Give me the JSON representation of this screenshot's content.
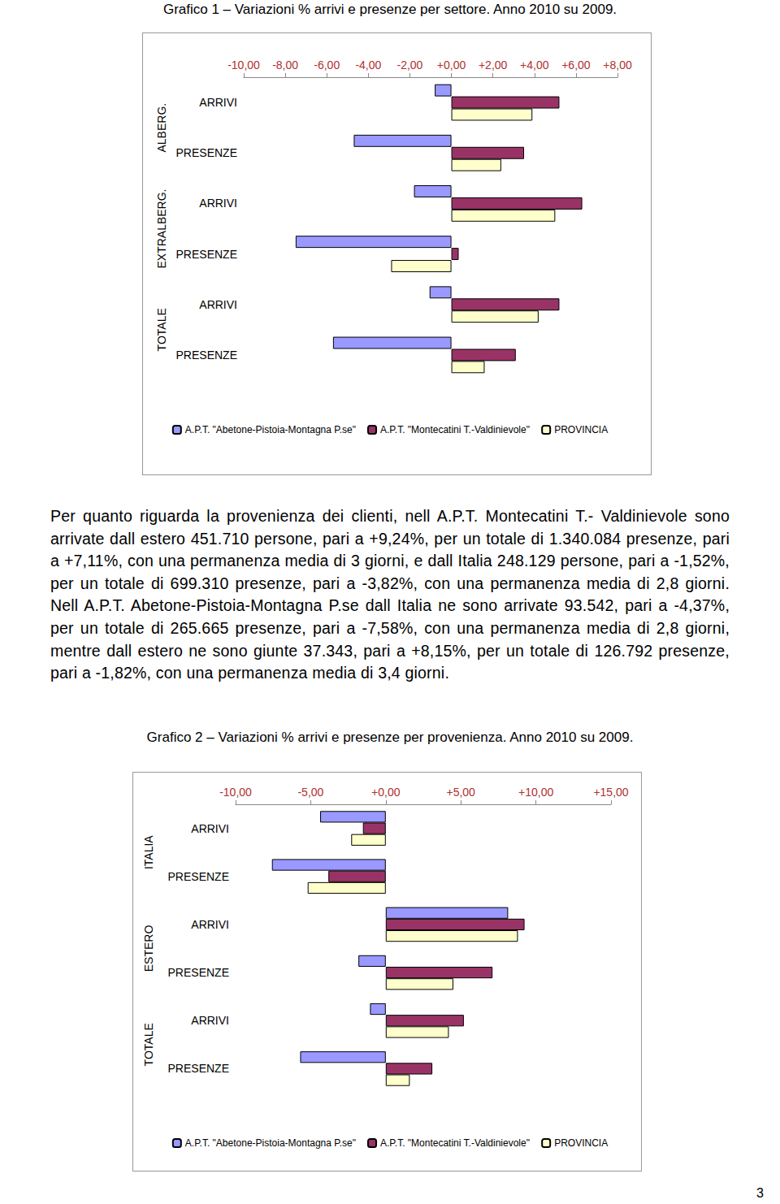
{
  "chart_data": [
    {
      "type": "bar",
      "orientation": "horizontal",
      "title": "Grafico 1 – Variazioni % arrivi e presenze per settore. Anno 2010 su 2009.",
      "groups": [
        "ALBERG.",
        "EXTRALBERG.",
        "TOTALE"
      ],
      "categories": [
        "ARRIVI",
        "PRESENZE",
        "ARRIVI",
        "PRESENZE",
        "ARRIVI",
        "PRESENZE"
      ],
      "series": [
        {
          "name": "A.P.T. \"Abetone-Pistoia-Montagna P.se\"",
          "color": "#9999ff",
          "values": [
            -0.8,
            -4.7,
            -1.8,
            -7.5,
            -1.05,
            -5.7
          ]
        },
        {
          "name": "A.P.T. \"Montecatini T.-Valdinievole\"",
          "color": "#993366",
          "values": [
            5.2,
            3.5,
            6.3,
            0.35,
            5.2,
            3.1
          ]
        },
        {
          "name": "PROVINCIA",
          "color": "#ffffcc",
          "values": [
            3.9,
            2.4,
            5.0,
            -2.9,
            4.2,
            1.6
          ]
        }
      ],
      "xlim": [
        -10,
        8
      ],
      "xticks": [
        {
          "value": -10,
          "label": "-10,00"
        },
        {
          "value": -8,
          "label": "-8,00"
        },
        {
          "value": -6,
          "label": "-6,00"
        },
        {
          "value": -4,
          "label": "-4,00"
        },
        {
          "value": -2,
          "label": "-2,00"
        },
        {
          "value": 0,
          "label": "+0,00"
        },
        {
          "value": 2,
          "label": "+2,00"
        },
        {
          "value": 4,
          "label": "+4,00"
        },
        {
          "value": 6,
          "label": "+6,00"
        },
        {
          "value": 8,
          "label": "+8,00"
        }
      ],
      "grid": false,
      "legend": "bottom"
    },
    {
      "type": "bar",
      "orientation": "horizontal",
      "title": "Grafico 2 – Variazioni % arrivi e presenze per provenienza. Anno 2010 su 2009.",
      "groups": [
        "ITALIA",
        "ESTERO",
        "TOTALE"
      ],
      "categories": [
        "ARRIVI",
        "PRESENZE",
        "ARRIVI",
        "PRESENZE",
        "ARRIVI",
        "PRESENZE"
      ],
      "series": [
        {
          "name": "A.P.T. \"Abetone-Pistoia-Montagna P.se\"",
          "color": "#9999ff",
          "values": [
            -4.37,
            -7.58,
            8.15,
            -1.82,
            -1.05,
            -5.7
          ]
        },
        {
          "name": "A.P.T. \"Montecatini T.-Valdinievole\"",
          "color": "#993366",
          "values": [
            -1.52,
            -3.82,
            9.24,
            7.11,
            5.2,
            3.1
          ]
        },
        {
          "name": "PROVINCIA",
          "color": "#ffffcc",
          "values": [
            -2.3,
            -5.2,
            8.8,
            4.5,
            4.2,
            1.6
          ]
        }
      ],
      "xlim": [
        -10,
        15
      ],
      "xticks": [
        {
          "value": -10,
          "label": "-10,00"
        },
        {
          "value": -5,
          "label": "-5,00"
        },
        {
          "value": 0,
          "label": "+0,00"
        },
        {
          "value": 5,
          "label": "+5,00"
        },
        {
          "value": 10,
          "label": "+10,00"
        },
        {
          "value": 15,
          "label": "+15,00"
        }
      ],
      "grid": false,
      "legend": "bottom"
    }
  ],
  "text": {
    "paragraph": "Per quanto riguarda la provenienza dei clienti, nell A.P.T. Montecatini T.- Valdinievole sono arrivate dall estero 451.710 persone, pari a +9,24%, per un totale di 1.340.084 presenze, pari a +7,11%, con una permanenza media di 3 giorni, e dall Italia 248.129 persone, pari a -1,52%, per un totale di 699.310 presenze, pari a -3,82%, con una permanenza media di 2,8 giorni. Nell A.P.T. Abetone-Pistoia-Montagna P.se dall Italia ne sono arrivate 93.542, pari a -4,37%, per un totale di 265.665 presenze, pari a -7,58%, con una permanenza media di 2,8 giorni, mentre dall estero ne sono giunte 37.343, pari a +8,15%, per un totale di 126.792 presenze, pari a -1,82%, con una permanenza media di 3,4 giorni.",
    "page_number": "3"
  }
}
